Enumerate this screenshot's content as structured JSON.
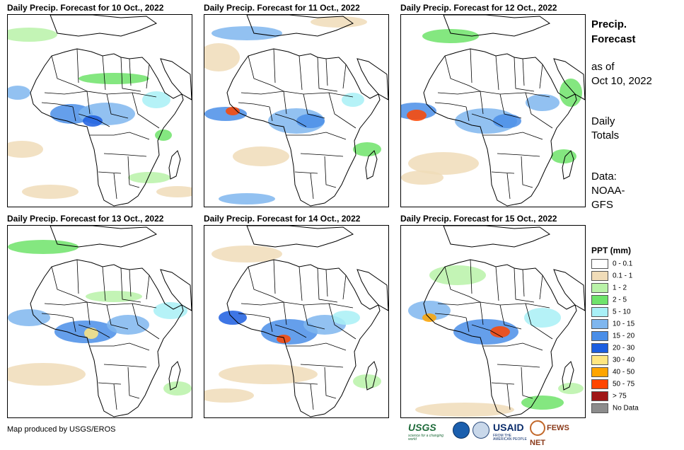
{
  "panels": [
    {
      "title": "Daily Precip. Forecast for 10 Oct., 2022"
    },
    {
      "title": "Daily Precip. Forecast for 11 Oct., 2022"
    },
    {
      "title": "Daily Precip. Forecast for 12 Oct., 2022"
    },
    {
      "title": "Daily Precip. Forecast for 13 Oct., 2022"
    },
    {
      "title": "Daily Precip. Forecast for 14 Oct., 2022"
    },
    {
      "title": "Daily Precip. Forecast for 15 Oct., 2022"
    }
  ],
  "info": {
    "title_line1": "Precip.",
    "title_line2": "Forecast",
    "as_of_line1": "as of",
    "as_of_line2": "Oct 10, 2022",
    "totals_line1": "Daily",
    "totals_line2": "Totals",
    "data_line1": "Data:",
    "data_line2": "NOAA-",
    "data_line3": "GFS"
  },
  "legend": {
    "title": "PPT (mm)",
    "items": [
      {
        "label": "0 - 0.1",
        "color": "#ffffff"
      },
      {
        "label": "0.1 - 1",
        "color": "#f0dcb8"
      },
      {
        "label": "1 - 2",
        "color": "#b9f2a8"
      },
      {
        "label": "2 - 5",
        "color": "#6ee36a"
      },
      {
        "label": "5 - 10",
        "color": "#a8f0f6"
      },
      {
        "label": "10 - 15",
        "color": "#7fb6ee"
      },
      {
        "label": "15 - 20",
        "color": "#4a8ee8"
      },
      {
        "label": "20 - 30",
        "color": "#1c5ee0"
      },
      {
        "label": "30 - 40",
        "color": "#ffe680"
      },
      {
        "label": "40 - 50",
        "color": "#ffa500"
      },
      {
        "label": "50 - 75",
        "color": "#ff4500"
      },
      {
        "label": "> 75",
        "color": "#a01616"
      },
      {
        "label": "No Data",
        "color": "#8c8c8c"
      }
    ]
  },
  "credit": "Map produced by USGS/EROS",
  "logos": {
    "usgs": "USGS",
    "usgs_tagline": "science for a changing world",
    "usaid": "USAID",
    "usaid_tagline": "FROM THE AMERICAN PEOPLE",
    "fews": "FEWS NET"
  }
}
